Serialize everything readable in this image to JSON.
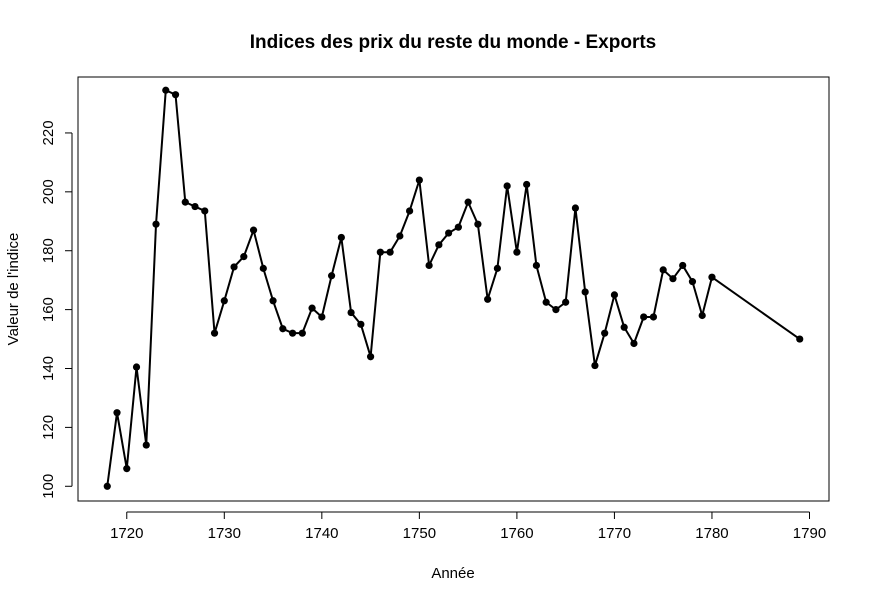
{
  "chart_data": {
    "type": "line",
    "title": "Indices des prix du reste du monde - Exports",
    "xlabel": "Année",
    "ylabel": "Valeur de l'indice",
    "xlim": [
      1715,
      1792
    ],
    "ylim": [
      95,
      239
    ],
    "x_ticks": [
      1720,
      1730,
      1740,
      1750,
      1760,
      1770,
      1780,
      1790
    ],
    "y_ticks": [
      100,
      120,
      140,
      160,
      180,
      200,
      220
    ],
    "grid": false,
    "series": [
      {
        "x": [
          1718,
          1719,
          1720,
          1721,
          1722,
          1723,
          1724,
          1725,
          1726,
          1727,
          1728,
          1729,
          1730,
          1731,
          1732,
          1733,
          1734,
          1735,
          1736,
          1737,
          1738,
          1739,
          1740,
          1741,
          1742,
          1743,
          1744,
          1745,
          1746,
          1747,
          1748,
          1749,
          1750,
          1751,
          1752,
          1753,
          1754,
          1755,
          1756,
          1757,
          1758,
          1759,
          1760,
          1761,
          1762,
          1763,
          1764,
          1765,
          1766,
          1767,
          1768,
          1769,
          1770,
          1771,
          1772,
          1773,
          1774,
          1775,
          1776,
          1777,
          1778,
          1779,
          1780,
          1789
        ],
        "y": [
          100,
          125,
          106,
          140.5,
          114,
          189,
          234.5,
          233,
          196.5,
          195,
          193.5,
          152,
          163,
          174.5,
          178,
          187,
          174,
          163,
          153.5,
          152,
          152,
          160.5,
          157.5,
          171.5,
          184.5,
          159,
          155,
          144,
          179.5,
          179.5,
          185,
          193.5,
          204,
          175,
          182,
          186,
          188,
          196.5,
          189,
          163.5,
          174,
          202,
          179.5,
          202.5,
          175,
          162.5,
          160,
          162.5,
          194.5,
          166,
          141,
          152,
          165,
          154,
          148.5,
          157.5,
          157.5,
          173.5,
          170.5,
          175,
          169.5,
          158,
          171,
          150
        ]
      }
    ]
  }
}
